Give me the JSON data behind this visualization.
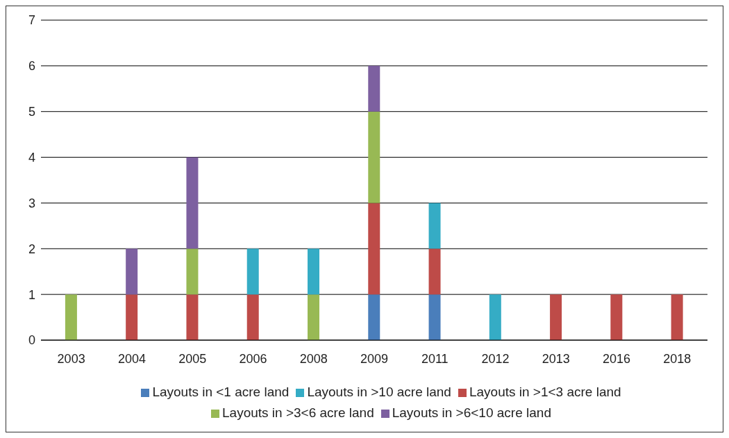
{
  "chart_data": {
    "type": "bar",
    "stacked": true,
    "categories": [
      "2003",
      "2004",
      "2005",
      "2006",
      "2008",
      "2009",
      "2011",
      "2012",
      "2013",
      "2016",
      "2018"
    ],
    "series": [
      {
        "name": "Layouts in <1 acre land",
        "color": "#4a7ebb",
        "values": [
          0,
          0,
          0,
          0,
          0,
          1,
          1,
          0,
          0,
          0,
          0
        ]
      },
      {
        "name": "Layouts in >1<3 acre land",
        "color": "#be4b48",
        "values": [
          0,
          1,
          1,
          1,
          0,
          2,
          1,
          0,
          1,
          1,
          1
        ]
      },
      {
        "name": "Layouts in >3<6 acre land",
        "color": "#98b954",
        "values": [
          1,
          0,
          1,
          0,
          1,
          2,
          0,
          0,
          0,
          0,
          0
        ]
      },
      {
        "name": "Layouts in >6<10 acre land",
        "color": "#7d60a0",
        "values": [
          0,
          1,
          2,
          0,
          0,
          1,
          0,
          0,
          0,
          0,
          0
        ]
      },
      {
        "name": "Layouts in >10 acre land",
        "color": "#35acc5",
        "values": [
          0,
          0,
          0,
          1,
          1,
          0,
          1,
          1,
          0,
          0,
          0
        ]
      }
    ],
    "ylim": [
      0,
      7
    ],
    "yticks": [
      0,
      1,
      2,
      3,
      4,
      5,
      6,
      7
    ],
    "grid": "y",
    "legend": "bottom"
  }
}
